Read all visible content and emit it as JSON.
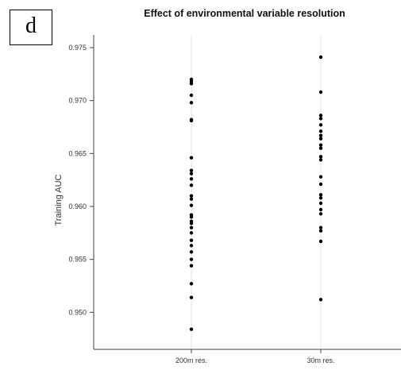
{
  "panel_label": "d",
  "chart_data": {
    "type": "scatter",
    "title": "Effect of environmental variable resolution",
    "xlabel": "",
    "ylabel": "Training AUC",
    "categories": [
      "200m res.",
      "30m res."
    ],
    "ylim": [
      0.9465,
      0.9762
    ],
    "yticks": [
      0.95,
      0.955,
      0.96,
      0.965,
      0.97,
      0.975
    ],
    "ytick_labels": [
      "0.950",
      "0.955",
      "0.960",
      "0.965",
      "0.970",
      "0.975"
    ],
    "grid": "vertical-at-categories",
    "marker_color": "#000000",
    "series": [
      {
        "category": "200m res.",
        "values": [
          0.972,
          0.9718,
          0.9716,
          0.9705,
          0.9698,
          0.9682,
          0.9681,
          0.9646,
          0.9634,
          0.9631,
          0.9626,
          0.962,
          0.961,
          0.9607,
          0.9601,
          0.9592,
          0.959,
          0.9586,
          0.9584,
          0.958,
          0.9575,
          0.9568,
          0.9563,
          0.9557,
          0.955,
          0.9544,
          0.9527,
          0.9514,
          0.9484
        ]
      },
      {
        "category": "30m res.",
        "values": [
          0.9741,
          0.9708,
          0.9686,
          0.9683,
          0.9677,
          0.9671,
          0.9667,
          0.9664,
          0.9658,
          0.9655,
          0.9647,
          0.9644,
          0.9628,
          0.9621,
          0.9611,
          0.9608,
          0.9603,
          0.9597,
          0.9593,
          0.958,
          0.9577,
          0.9567,
          0.9512
        ]
      }
    ]
  }
}
